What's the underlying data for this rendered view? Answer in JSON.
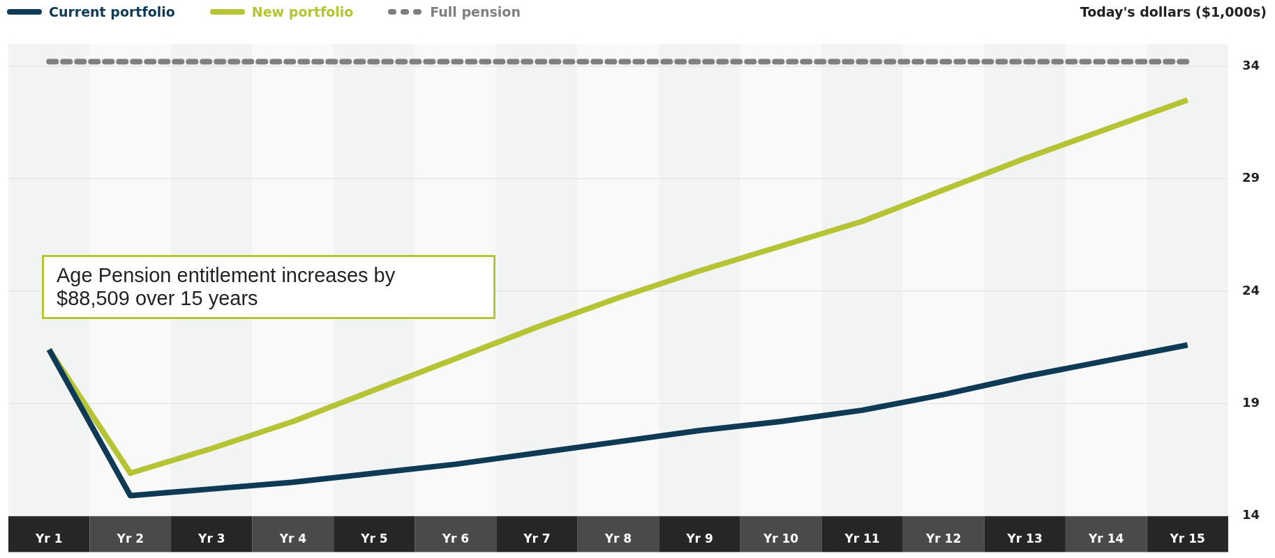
{
  "chart_data": {
    "type": "line",
    "ylabel": "Today's dollars ($1,000s)",
    "categories": [
      "Yr 1",
      "Yr 2",
      "Yr 3",
      "Yr 4",
      "Yr 5",
      "Yr 6",
      "Yr 7",
      "Yr 8",
      "Yr 9",
      "Yr 10",
      "Yr 11",
      "Yr 12",
      "Yr 13",
      "Yr 14",
      "Yr 15"
    ],
    "series": [
      {
        "name": "Current portfolio",
        "color": "#0e3a56",
        "line_style": "solid",
        "values": [
          21.4,
          14.9,
          15.2,
          15.5,
          15.9,
          16.3,
          16.8,
          17.3,
          17.8,
          18.2,
          18.7,
          19.4,
          20.2,
          20.9,
          21.6
        ]
      },
      {
        "name": "New portfolio",
        "color": "#b5c334",
        "line_style": "solid",
        "values": [
          21.4,
          15.9,
          17.0,
          18.2,
          19.6,
          21.0,
          22.4,
          23.7,
          24.9,
          26.0,
          27.1,
          28.5,
          29.9,
          31.2,
          32.5
        ]
      },
      {
        "name": "Full pension",
        "color": "#7f7f7f",
        "line_style": "dotted",
        "values": [
          34.2,
          34.2,
          34.2,
          34.2,
          34.2,
          34.2,
          34.2,
          34.2,
          34.2,
          34.2,
          34.2,
          34.2,
          34.2,
          34.2,
          34.2
        ]
      }
    ],
    "ylim": [
      14,
      35
    ],
    "yticks": [
      14,
      19,
      24,
      29,
      34
    ],
    "grid": "y",
    "legend": "top left",
    "marker": "none",
    "annotations": [
      "Age Pension entitlement increases by $88,509 over 15 years"
    ]
  }
}
